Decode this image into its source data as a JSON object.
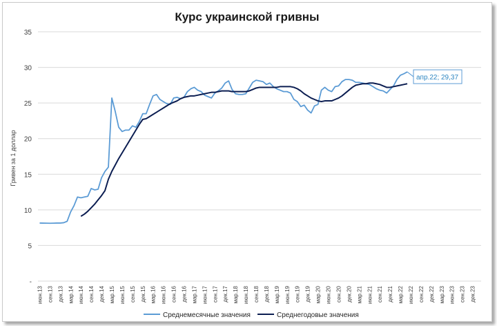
{
  "chart_data": {
    "type": "line",
    "title": "Курс украинской гривны",
    "xlabel": "",
    "ylabel": "Гривен за 1 доллар",
    "ylim": [
      0,
      35
    ],
    "yticks": [
      "-",
      "5",
      "10",
      "15",
      "20",
      "25",
      "30",
      "35"
    ],
    "grid": true,
    "legend_position": "bottom",
    "x_tick_labels": [
      "июн.13",
      "сен.13",
      "дек.13",
      "мар.14",
      "июн.14",
      "сен.14",
      "дек.14",
      "мар.15",
      "июн.15",
      "сен.15",
      "дек.15",
      "мар.16",
      "июн.16",
      "сен.16",
      "дек.16",
      "мар.17",
      "июн.17",
      "сен.17",
      "дек.17",
      "мар.18",
      "июн.18",
      "сен.18",
      "дек.18",
      "мар.19",
      "июн.19",
      "сен.19",
      "дек.19",
      "мар.20",
      "июн.20",
      "сен.20",
      "дек.20",
      "мар.21",
      "июн.21",
      "сен.21",
      "дек.21",
      "мар.22",
      "июн.22",
      "сен.22",
      "дек.22",
      "мар.23",
      "июн.23",
      "сен.23",
      "дек.23"
    ],
    "series": [
      {
        "name": "Среднемесячные значения",
        "color": "#5b9bd5",
        "values": [
          8.15,
          8.14,
          8.13,
          8.12,
          8.13,
          8.15,
          8.15,
          8.2,
          8.4,
          9.7,
          10.6,
          11.8,
          11.7,
          11.8,
          11.9,
          13.0,
          12.8,
          12.9,
          14.5,
          15.4,
          16.0,
          25.7,
          23.8,
          21.6,
          21.0,
          21.2,
          21.2,
          21.8,
          21.6,
          22.4,
          23.5,
          23.5,
          24.8,
          26.0,
          26.2,
          25.5,
          25.2,
          24.9,
          24.8,
          25.7,
          25.8,
          25.6,
          25.8,
          26.6,
          27.0,
          27.2,
          26.8,
          26.6,
          26.1,
          25.9,
          25.7,
          26.4,
          26.7,
          27.1,
          27.8,
          28.1,
          26.9,
          26.3,
          26.2,
          26.2,
          26.3,
          27.1,
          27.9,
          28.2,
          28.1,
          28.0,
          27.6,
          27.8,
          27.3,
          27.0,
          26.8,
          26.6,
          26.6,
          26.4,
          25.5,
          25.2,
          24.5,
          24.7,
          24.0,
          23.6,
          24.6,
          24.8,
          26.8,
          27.2,
          26.8,
          26.6,
          27.3,
          27.4,
          28.0,
          28.3,
          28.3,
          28.2,
          27.9,
          27.9,
          27.8,
          27.7,
          27.6,
          27.3,
          27.0,
          26.8,
          26.7,
          26.4,
          26.9,
          27.4,
          28.3,
          28.9,
          29.1,
          29.37
        ]
      },
      {
        "name": "Среднегодовые значения",
        "color": "#0b1d51",
        "values": [
          null,
          null,
          null,
          null,
          null,
          null,
          null,
          null,
          null,
          null,
          null,
          null,
          9.1,
          9.4,
          9.8,
          10.3,
          10.8,
          11.4,
          12.0,
          12.7,
          14.3,
          15.4,
          16.3,
          17.2,
          18.0,
          18.8,
          19.6,
          20.4,
          21.2,
          22.0,
          22.7,
          22.8,
          23.1,
          23.4,
          23.7,
          24.0,
          24.3,
          24.6,
          24.9,
          25.1,
          25.3,
          25.6,
          25.8,
          25.9,
          26.0,
          26.0,
          26.1,
          26.2,
          26.3,
          26.4,
          26.5,
          26.5,
          26.6,
          26.7,
          26.7,
          26.7,
          26.6,
          26.6,
          26.6,
          26.6,
          26.6,
          26.7,
          26.9,
          27.1,
          27.2,
          27.2,
          27.2,
          27.2,
          27.2,
          27.2,
          27.3,
          27.3,
          27.3,
          27.3,
          27.2,
          27.0,
          26.7,
          26.3,
          26.0,
          25.7,
          25.5,
          25.3,
          25.2,
          25.3,
          25.3,
          25.3,
          25.5,
          25.7,
          26.0,
          26.4,
          26.8,
          27.2,
          27.5,
          27.6,
          27.7,
          27.7,
          27.8,
          27.8,
          27.7,
          27.6,
          27.4,
          27.2,
          27.2,
          27.3,
          27.4,
          27.5,
          27.6,
          27.7
        ]
      }
    ],
    "annotation": {
      "text": "апр.22;   29,37",
      "series_index": 0,
      "point_index": 107
    }
  }
}
